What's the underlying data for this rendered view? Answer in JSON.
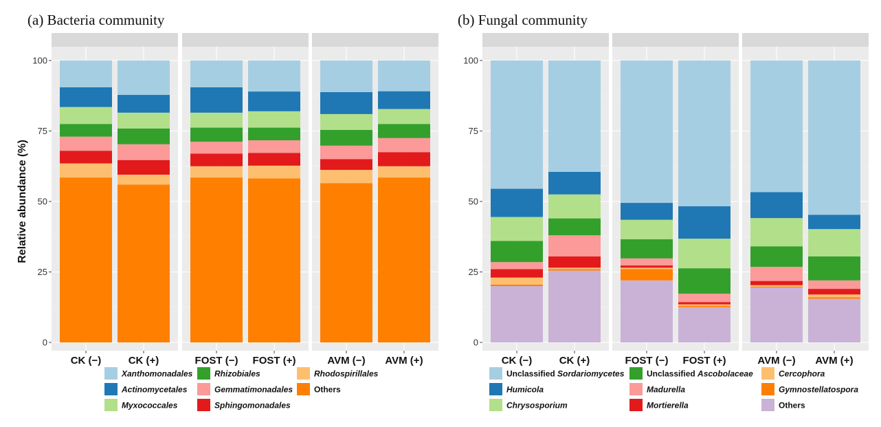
{
  "chart_data": [
    {
      "type": "bar",
      "stacked": true,
      "title": "(a) Bacteria community",
      "ylabel": "Relative abundance (%)",
      "ylim": [
        0,
        100
      ],
      "yticks": [
        "0",
        "25",
        "50",
        "75",
        "100"
      ],
      "facets": [
        {
          "categories": [
            "CK (−)",
            "CK (+)"
          ]
        },
        {
          "categories": [
            "FOST (−)",
            "FOST (+)"
          ]
        },
        {
          "categories": [
            "AVM (−)",
            "AVM (+)"
          ]
        }
      ],
      "legend_position": "bottom",
      "series": [
        {
          "name": "Others",
          "legend_name": [
            {
              "t": "Others",
              "it": false
            }
          ],
          "color": "#ff7f00",
          "values": [
            58.5,
            56.0,
            58.5,
            58.2,
            56.5,
            58.5
          ]
        },
        {
          "name": "Rhodospirillales",
          "legend_name": [
            {
              "t": "Rhodospirillales",
              "it": true
            }
          ],
          "color": "#fdbf6f",
          "values": [
            5.0,
            3.5,
            4.0,
            4.5,
            4.7,
            4.0
          ]
        },
        {
          "name": "Sphingomonadales",
          "legend_name": [
            {
              "t": "Sphingomonadales",
              "it": true
            }
          ],
          "color": "#e31a1c",
          "values": [
            4.5,
            5.2,
            4.5,
            4.5,
            3.8,
            5.0
          ]
        },
        {
          "name": "Gemmatimonadales",
          "legend_name": [
            {
              "t": "Gemmatimonadales",
              "it": true
            }
          ],
          "color": "#fb9a99",
          "values": [
            5.0,
            5.6,
            4.2,
            4.5,
            4.8,
            5.0
          ]
        },
        {
          "name": "Rhizobiales",
          "legend_name": [
            {
              "t": "Rhizobiales",
              "it": true
            }
          ],
          "color": "#33a02c",
          "values": [
            4.5,
            5.6,
            5.0,
            4.5,
            5.6,
            5.0
          ]
        },
        {
          "name": "Myxococcales",
          "legend_name": [
            {
              "t": "Myxococcales",
              "it": true
            }
          ],
          "color": "#b2df8a",
          "values": [
            6.0,
            5.6,
            5.3,
            5.8,
            5.6,
            5.3
          ]
        },
        {
          "name": "Actinomycetales",
          "legend_name": [
            {
              "t": "Actinomycetales",
              "it": true
            }
          ],
          "color": "#1f78b4",
          "values": [
            7.0,
            6.3,
            9.0,
            7.0,
            7.8,
            6.3
          ]
        },
        {
          "name": "Xanthomonadales",
          "legend_name": [
            {
              "t": "Xanthomonadales",
              "it": true
            }
          ],
          "color": "#a6cee3",
          "values": [
            9.5,
            12.2,
            9.5,
            11.0,
            11.2,
            10.9
          ]
        }
      ],
      "legend_rows": [
        [
          "Xanthomonadales",
          "Rhizobiales",
          "Rhodospirillales"
        ],
        [
          "Actinomycetales",
          "Gemmatimonadales",
          "Others"
        ],
        [
          "Myxococcales",
          "Sphingomonadales"
        ]
      ]
    },
    {
      "type": "bar",
      "stacked": true,
      "title": "(b) Fungal community",
      "ylabel": "",
      "ylim": [
        0,
        100
      ],
      "yticks": [
        "0",
        "25",
        "50",
        "75",
        "100"
      ],
      "facets": [
        {
          "categories": [
            "CK (−)",
            "CK (+)"
          ]
        },
        {
          "categories": [
            "FOST (−)",
            "FOST (+)"
          ]
        },
        {
          "categories": [
            "AVM (−)",
            "AVM (+)"
          ]
        }
      ],
      "legend_position": "bottom",
      "series": [
        {
          "name": "Others",
          "legend_name": [
            {
              "t": "Others",
              "it": false
            }
          ],
          "color": "#cab2d6",
          "values": [
            20.0,
            25.5,
            22.0,
            12.5,
            19.5,
            15.5
          ]
        },
        {
          "name": "Gymnostellatospora",
          "legend_name": [
            {
              "t": "Gymnostellatospora",
              "it": true
            }
          ],
          "color": "#ff7f00",
          "values": [
            0.5,
            0.5,
            4.0,
            0.5,
            0.3,
            0.5
          ]
        },
        {
          "name": "Cercophora",
          "legend_name": [
            {
              "t": "Cercophora",
              "it": true
            }
          ],
          "color": "#fdbf6f",
          "values": [
            2.5,
            0.5,
            0.5,
            0.5,
            0.5,
            1.0
          ]
        },
        {
          "name": "Mortierella",
          "legend_name": [
            {
              "t": "Mortierella",
              "it": true
            }
          ],
          "color": "#e31a1c",
          "values": [
            3.0,
            4.0,
            0.8,
            0.8,
            1.5,
            2.0
          ]
        },
        {
          "name": "Madurella",
          "legend_name": [
            {
              "t": "Madurella",
              "it": true
            }
          ],
          "color": "#fb9a99",
          "values": [
            2.5,
            7.5,
            2.5,
            3.0,
            5.0,
            3.0
          ]
        },
        {
          "name": "Unclassified Ascobolaceae",
          "legend_name": [
            {
              "t": "Unclassified ",
              "it": false
            },
            {
              "t": "Ascobolaceae",
              "it": true
            }
          ],
          "color": "#33a02c",
          "values": [
            7.5,
            6.0,
            6.8,
            9.0,
            7.3,
            8.5
          ]
        },
        {
          "name": "Chrysosporium",
          "legend_name": [
            {
              "t": "Chrysosporium",
              "it": true
            }
          ],
          "color": "#b2df8a",
          "values": [
            8.5,
            8.5,
            6.9,
            10.5,
            10.0,
            9.7
          ]
        },
        {
          "name": "Humicola",
          "legend_name": [
            {
              "t": "Humicola",
              "it": true
            }
          ],
          "color": "#1f78b4",
          "values": [
            10.0,
            8.0,
            6.0,
            11.5,
            9.2,
            5.1
          ]
        },
        {
          "name": "Unclassified Sordariomycetes",
          "legend_name": [
            {
              "t": "Unclassified ",
              "it": false
            },
            {
              "t": "Sordariomycetes",
              "it": true
            }
          ],
          "color": "#a6cee3",
          "values": [
            45.5,
            39.5,
            50.5,
            51.7,
            46.7,
            54.7
          ]
        }
      ],
      "legend_rows": [
        [
          "Unclassified Sordariomycetes",
          "Unclassified Ascobolaceae",
          "Cercophora"
        ],
        [
          "Humicola",
          "Madurella",
          "Gymnostellatospora"
        ],
        [
          "Chrysosporium",
          "Mortierella",
          "Others"
        ]
      ]
    }
  ]
}
